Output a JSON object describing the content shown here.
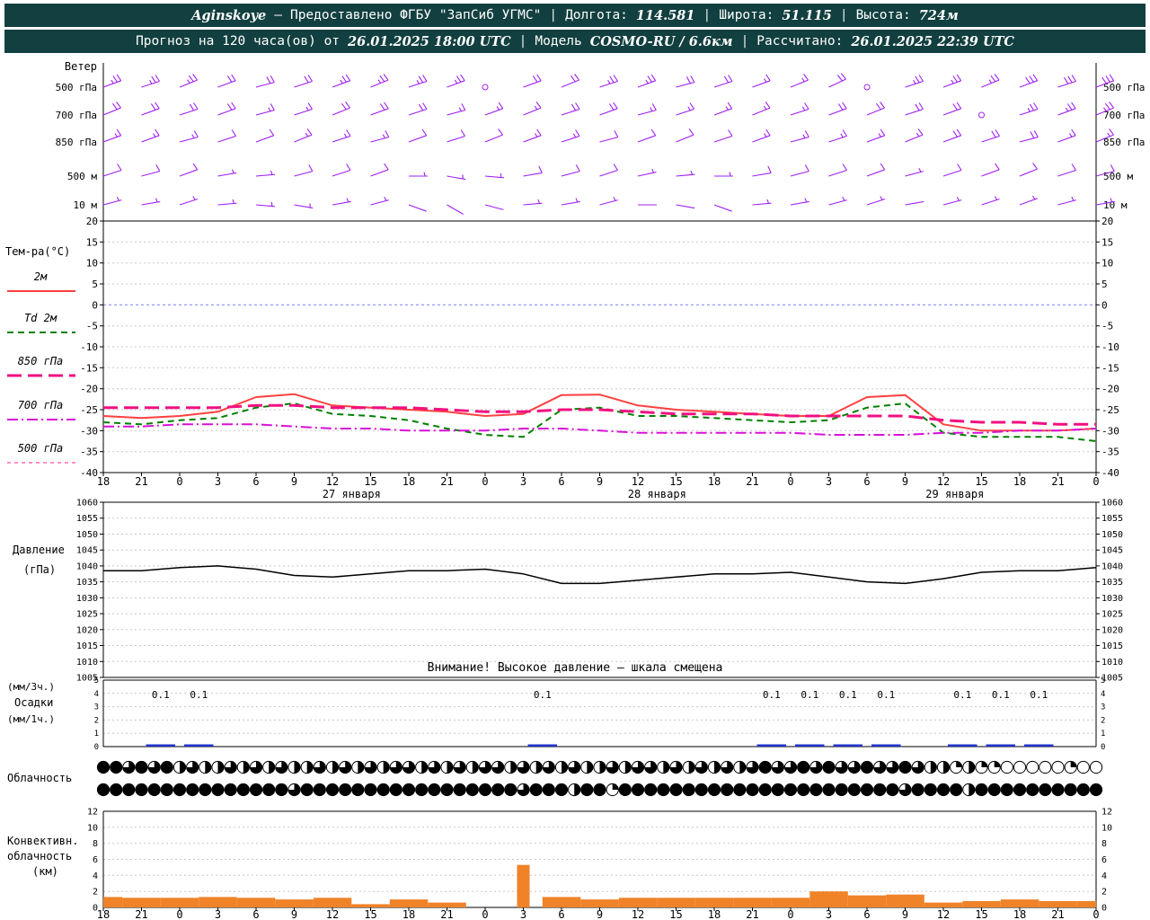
{
  "header": {
    "station": "Aginskoye",
    "dash": "—",
    "provider": "Предоставлено ФГБУ \"ЗапСиб УГМС\"",
    "sep": "|",
    "lon_label": "Долгота:",
    "lon_value": "114.581",
    "lat_label": "Широта:",
    "lat_value": "51.115",
    "alt_label": "Высота:",
    "alt_value": "724м",
    "line2_prefix": "Прогноз на 120 часа(ов) от",
    "run_time": "26.01.2025 18:00 UTC",
    "model_label": "Модель",
    "model_value": "COSMO-RU / 6.6км",
    "calc_label": "Рассчитано:",
    "calc_time": "26.01.2025 22:39 UTC"
  },
  "chart_data": {
    "type": "line",
    "colors": {
      "header_bg": "#123f3f",
      "wind": "#A020F0",
      "t2m": "#FF4040",
      "td2m": "#008000",
      "t850": "#F01080",
      "t700": "#D810D8",
      "t500": "#FF69B4",
      "pressure": "#000000",
      "precip": "#2233cc",
      "cloud": "#000000",
      "convective": "#F08228",
      "zero_line": "#7B7BFF",
      "grid": "#c8c8c8"
    },
    "x_axis": {
      "tick_labels": [
        "18",
        "21",
        "0",
        "3",
        "6",
        "9",
        "12",
        "15",
        "18",
        "21",
        "0",
        "3",
        "6",
        "9",
        "12",
        "15",
        "18",
        "21",
        "0",
        "3",
        "6",
        "9",
        "12",
        "15",
        "18",
        "21",
        "0"
      ],
      "day_labels": [
        {
          "label": "27 января",
          "center_index": 6.5
        },
        {
          "label": "28 января",
          "center_index": 14.5
        },
        {
          "label": "29 января",
          "center_index": 22.3
        }
      ]
    },
    "wind": {
      "label": "Ветер",
      "rows": [
        {
          "label": "500 гПа",
          "speeds": [
            25,
            25,
            25,
            20,
            20,
            20,
            25,
            25,
            25,
            25,
            2,
            20,
            20,
            25,
            25,
            20,
            20,
            15,
            15,
            20,
            2,
            25,
            25,
            25,
            30,
            30,
            30
          ],
          "dirs": [
            70,
            72,
            68,
            70,
            75,
            72,
            70,
            68,
            72,
            70,
            0,
            70,
            68,
            72,
            70,
            75,
            72,
            70,
            68,
            65,
            0,
            72,
            70,
            68,
            70,
            72,
            70
          ]
        },
        {
          "label": "700 гПа",
          "speeds": [
            20,
            20,
            20,
            20,
            15,
            15,
            20,
            20,
            20,
            15,
            15,
            15,
            20,
            20,
            15,
            15,
            15,
            15,
            15,
            20,
            20,
            20,
            20,
            2,
            25,
            25,
            25
          ],
          "dirs": [
            68,
            70,
            72,
            70,
            75,
            72,
            68,
            70,
            72,
            75,
            70,
            68,
            72,
            70,
            75,
            72,
            70,
            68,
            72,
            70,
            68,
            72,
            70,
            0,
            72,
            70,
            68
          ]
        },
        {
          "label": "850 гПа",
          "speeds": [
            15,
            15,
            15,
            10,
            10,
            15,
            15,
            15,
            10,
            10,
            10,
            15,
            15,
            10,
            10,
            10,
            10,
            15,
            15,
            15,
            15,
            15,
            20,
            20,
            20,
            15,
            15
          ],
          "dirs": [
            70,
            70,
            75,
            72,
            70,
            68,
            72,
            75,
            70,
            72,
            68,
            70,
            72,
            75,
            70,
            68,
            72,
            70,
            75,
            72,
            70,
            68,
            70,
            72,
            75,
            70,
            68
          ]
        },
        {
          "label": "500 м",
          "speeds": [
            10,
            10,
            10,
            5,
            5,
            10,
            10,
            10,
            5,
            5,
            5,
            10,
            10,
            10,
            5,
            5,
            5,
            10,
            10,
            10,
            10,
            5,
            10,
            10,
            10,
            10,
            10
          ],
          "dirs": [
            72,
            75,
            70,
            80,
            85,
            75,
            72,
            70,
            90,
            100,
            95,
            80,
            75,
            72,
            78,
            85,
            90,
            80,
            75,
            72,
            70,
            75,
            72,
            70,
            68,
            72,
            75
          ]
        },
        {
          "label": "10 м",
          "speeds": [
            5,
            5,
            5,
            5,
            5,
            5,
            5,
            5,
            3,
            3,
            3,
            5,
            5,
            5,
            3,
            3,
            3,
            5,
            5,
            5,
            5,
            3,
            5,
            5,
            5,
            5,
            5
          ],
          "dirs": [
            75,
            80,
            72,
            85,
            95,
            100,
            80,
            75,
            110,
            120,
            105,
            85,
            80,
            75,
            90,
            100,
            110,
            85,
            80,
            75,
            72,
            80,
            75,
            72,
            70,
            75,
            80
          ]
        }
      ]
    },
    "temperature": {
      "label": "Тем-ра(°C)",
      "ylim": [
        -40,
        20
      ],
      "yticks": [
        20,
        15,
        10,
        5,
        0,
        -5,
        -10,
        -15,
        -20,
        -25,
        -30,
        -35,
        -40
      ],
      "series": [
        {
          "name": "2м",
          "color": "#FF4040",
          "style": "solid",
          "width": 2,
          "values": [
            -26.5,
            -27,
            -26.5,
            -25.5,
            -22,
            -21.3,
            -24,
            -24.5,
            -25,
            -25.5,
            -26.5,
            -26,
            -21.5,
            -21.4,
            -24,
            -25,
            -25.5,
            -26,
            -26.5,
            -26.5,
            -22,
            -21.5,
            -28.5,
            -30,
            -30,
            -30,
            -29.5
          ]
        },
        {
          "name": "Td 2м",
          "color": "#008000",
          "style": "dash",
          "width": 2,
          "values": [
            -28,
            -28.5,
            -27.5,
            -27,
            -24.5,
            -23.5,
            -26,
            -26.5,
            -27.5,
            -29.5,
            -31,
            -31.5,
            -25,
            -24.5,
            -26.5,
            -26.5,
            -27,
            -27.5,
            -28,
            -27.5,
            -24.5,
            -23.5,
            -30.5,
            -31.5,
            -31.5,
            -31.5,
            -32.5
          ]
        },
        {
          "name": "850 гПа",
          "color": "#F01080",
          "style": "longdash",
          "width": 3,
          "values": [
            -24.5,
            -24.5,
            -24.5,
            -24.5,
            -24,
            -24,
            -24.5,
            -24.5,
            -24.5,
            -25,
            -25.5,
            -25.5,
            -25,
            -25,
            -25.5,
            -26,
            -26,
            -26,
            -26.5,
            -26.5,
            -26.5,
            -26.5,
            -27.5,
            -28,
            -28,
            -28.5,
            -28.5
          ]
        },
        {
          "name": "700 гПа",
          "color": "#D810D8",
          "style": "dashdot",
          "width": 2,
          "values": [
            -29,
            -29,
            -28.5,
            -28.5,
            -28.5,
            -29,
            -29.5,
            -29.5,
            -30,
            -30,
            -30,
            -29.5,
            -29.5,
            -30,
            -30.5,
            -30.5,
            -30.5,
            -30.5,
            -30.5,
            -31,
            -31,
            -31,
            -30.5,
            -30.5,
            -30,
            -30,
            -29.5
          ]
        },
        {
          "name": "500 гПа",
          "color": "#FF69B4",
          "style": "finedash",
          "width": 1.5,
          "values": []
        }
      ]
    },
    "pressure": {
      "label_lines": [
        "Давление",
        "(гПа)"
      ],
      "ylim": [
        1005,
        1060
      ],
      "yticks": [
        1060,
        1055,
        1050,
        1045,
        1040,
        1035,
        1030,
        1025,
        1020,
        1015,
        1010,
        1005
      ],
      "warning": "Внимание! Высокое давление — шкала смещена",
      "values": [
        1038.5,
        1038.5,
        1039.5,
        1040,
        1039,
        1037,
        1036.5,
        1037.5,
        1038.5,
        1038.5,
        1039,
        1037.5,
        1034.5,
        1034.5,
        1035.5,
        1036.5,
        1037.5,
        1037.5,
        1038,
        1036.5,
        1035,
        1034.5,
        1036,
        1038,
        1038.5,
        1038.5,
        1039.5
      ]
    },
    "precipitation": {
      "label_lines": [
        "(мм/3ч.)",
        "Осадки",
        "(мм/1ч.)"
      ],
      "ylim": [
        0,
        5
      ],
      "yticks": [
        5,
        4,
        3,
        2,
        1,
        0
      ],
      "values_3h": [
        0,
        0.1,
        0.1,
        0,
        0,
        0,
        0,
        0,
        0,
        0,
        0,
        0.1,
        0,
        0,
        0,
        0,
        0,
        0.1,
        0.1,
        0.1,
        0.1,
        0,
        0.1,
        0.1,
        0.1,
        0
      ]
    },
    "cloudiness": {
      "label": "Облачность",
      "rows": [
        {
          "values": [
            1,
            1,
            0.75,
            1,
            0.75,
            1,
            0.5,
            0.75,
            0.5,
            0.5,
            0.75,
            0.5,
            0.75,
            0.5,
            0.75,
            0.5,
            0.5,
            0.75,
            0.5,
            0.75,
            0.5,
            0.75,
            0.5,
            0.75,
            0.75,
            0.5,
            0.75,
            0.5,
            0.75,
            0.5,
            0.75,
            0.75,
            0.5,
            0.75,
            0.5,
            0.75,
            0.5,
            0.75,
            0.5,
            0.5,
            0.75,
            0.5,
            0.75,
            0.75,
            0.5,
            0.75,
            0.5,
            0.75,
            0.5,
            0.75,
            0.5,
            0.75,
            1,
            0.75,
            0.75,
            1,
            0.75,
            1,
            0.75,
            0.75,
            1,
            0.75,
            0.75,
            1,
            0.75,
            0.5,
            0.5,
            0.25,
            0.5,
            0.25,
            0.25,
            0,
            0,
            0,
            0,
            0,
            0.25,
            0,
            0
          ]
        },
        {
          "values": [
            1,
            1,
            1,
            1,
            1,
            1,
            1,
            1,
            1,
            1,
            1,
            1,
            1,
            1,
            1,
            0.75,
            1,
            1,
            1,
            1,
            1,
            1,
            1,
            1,
            1,
            1,
            1,
            1,
            1,
            1,
            1,
            1,
            1,
            0.75,
            1,
            1,
            1,
            0.5,
            1,
            1,
            0.25,
            1,
            1,
            1,
            1,
            1,
            1,
            1,
            1,
            1,
            1,
            1,
            1,
            1,
            1,
            1,
            1,
            1,
            1,
            1,
            1,
            1,
            1,
            0.75,
            1,
            1,
            1,
            1,
            0.5,
            1,
            1,
            1,
            1,
            1,
            1,
            1,
            1,
            1,
            1
          ]
        }
      ]
    },
    "convective": {
      "label_lines": [
        "Конвективн.",
        "облачность",
        "(км)"
      ],
      "ylim": [
        0,
        12
      ],
      "yticks": [
        12,
        10,
        8,
        6,
        4,
        2,
        0
      ],
      "values": [
        1.3,
        1.2,
        1.2,
        1.3,
        1.2,
        1.0,
        1.2,
        0.4,
        1.0,
        0.6,
        0,
        5.3,
        1.3,
        1.0,
        1.2,
        1.2,
        1.2,
        1.2,
        1.2,
        2.0,
        1.5,
        1.6,
        0.6,
        0.8,
        1.0,
        0.8,
        0.8
      ]
    }
  }
}
